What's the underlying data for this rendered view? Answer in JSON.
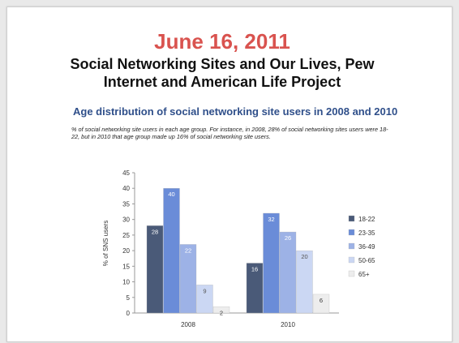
{
  "slide": {
    "date": "June 16, 2011",
    "headline_line1": "Social Networking Sites and Our Lives, Pew",
    "headline_line2": "Internet and American Life Project",
    "subtitle": "Age distribution of social networking site users in 2008 and 2010",
    "note": "% of social networking site users in each age group. For instance, in 2008, 28% of social networking sites users were 18-22, but in 2010 that age group made up 16% of social networking site users."
  },
  "chart_data": {
    "type": "bar",
    "categories": [
      "2008",
      "2010"
    ],
    "ylabel": "% of SNS users",
    "ylim": [
      0,
      45
    ],
    "yticks": [
      0,
      5,
      10,
      15,
      20,
      25,
      30,
      35,
      40,
      45
    ],
    "legend_position": "right",
    "series": [
      {
        "name": "18-22",
        "color": "#4a5a78",
        "label_color": "#ffffff",
        "values": [
          28,
          16
        ]
      },
      {
        "name": "23-35",
        "color": "#6a8cd8",
        "label_color": "#ffffff",
        "values": [
          40,
          32
        ]
      },
      {
        "name": "36-49",
        "color": "#9db2e6",
        "label_color": "#ffffff",
        "values": [
          22,
          26
        ]
      },
      {
        "name": "50-65",
        "color": "#cbd7f3",
        "label_color": "#555555",
        "values": [
          9,
          20
        ]
      },
      {
        "name": "65+",
        "color": "#ededed",
        "label_color": "#333333",
        "values": [
          2,
          6
        ]
      }
    ]
  }
}
